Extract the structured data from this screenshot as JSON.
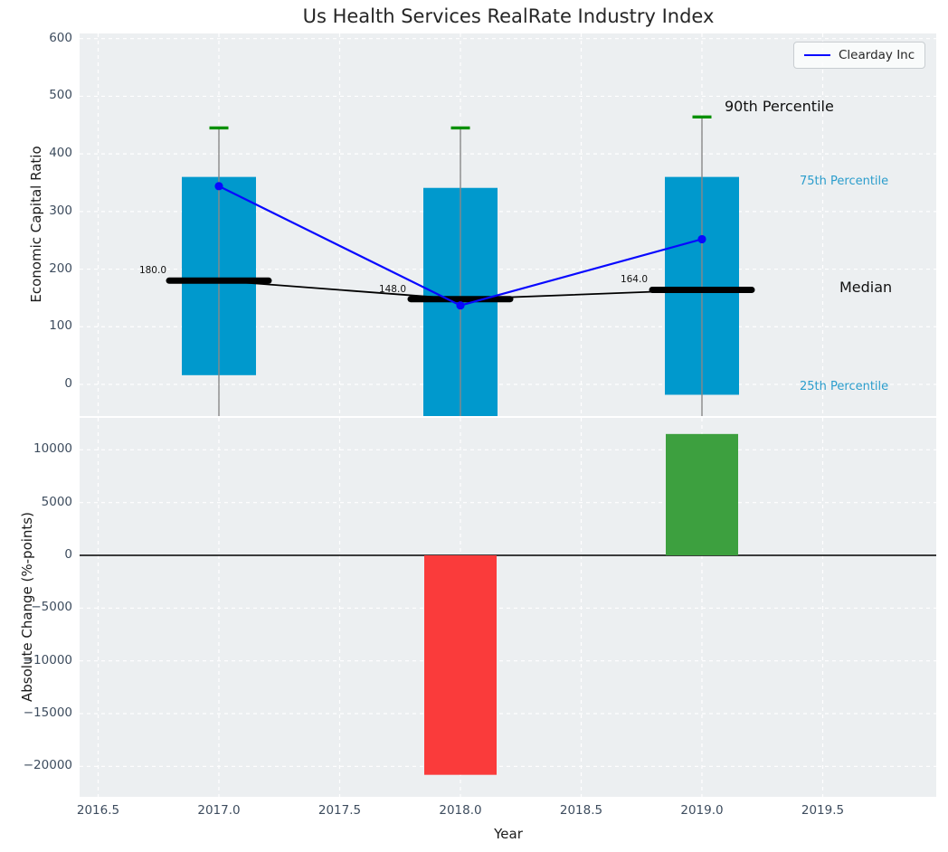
{
  "title": "Us Health Services RealRate Industry Index",
  "legend": {
    "label": "Clearday Inc"
  },
  "labels": {
    "p90": "90th Percentile",
    "p75": "75th Percentile",
    "median": "Median",
    "p25": "25th Percentile"
  },
  "axis": {
    "xlabel": "Year"
  },
  "chart_data": [
    {
      "type": "box-percentile",
      "panel": "top",
      "title": "Us Health Services RealRate Industry Index",
      "ylabel": "Economic Capital Ratio",
      "years": [
        2017,
        2018,
        2019
      ],
      "p90": [
        445,
        445,
        464
      ],
      "box_top_p75": [
        360,
        341,
        360
      ],
      "median": [
        180,
        148,
        164
      ],
      "median_labels": [
        "180.0",
        "148.0",
        "164.0"
      ],
      "box_bottom_p25": [
        16,
        -57,
        -18
      ],
      "whiskers_clipped_below_axis": true,
      "series": [
        {
          "name": "Clearday Inc",
          "color": "#0808ff",
          "values": [
            344,
            137,
            252
          ]
        }
      ],
      "yticks": [
        0,
        100,
        200,
        300,
        400,
        500,
        600
      ],
      "xticks": [
        2016.5,
        2017.0,
        2017.5,
        2018.0,
        2018.5,
        2019.0,
        2019.5
      ],
      "ylim": [
        -55,
        609
      ],
      "xlim": [
        2016.42,
        2019.97
      ],
      "grid": "white dashed",
      "legend_position": "upper right",
      "colors": {
        "box": "#0099cd",
        "cap": "#089000",
        "whisker": "#888888",
        "median": "#000000",
        "background": "#eceff1"
      }
    },
    {
      "type": "bar",
      "panel": "bottom",
      "ylabel": "Absolute Change (%-points)",
      "xlabel": "Year",
      "x": [
        2018,
        2019
      ],
      "values": [
        -20800,
        11500
      ],
      "bar_colors": [
        "#fa3b3b",
        "#3da03f"
      ],
      "yticks": [
        -20000,
        -15000,
        -10000,
        -5000,
        0,
        5000,
        10000
      ],
      "xticks": [
        2016.5,
        2017.0,
        2017.5,
        2018.0,
        2018.5,
        2019.0,
        2019.5
      ],
      "ylim": [
        -22900,
        13100
      ],
      "zero_line": true,
      "grid": "white dashed"
    }
  ]
}
